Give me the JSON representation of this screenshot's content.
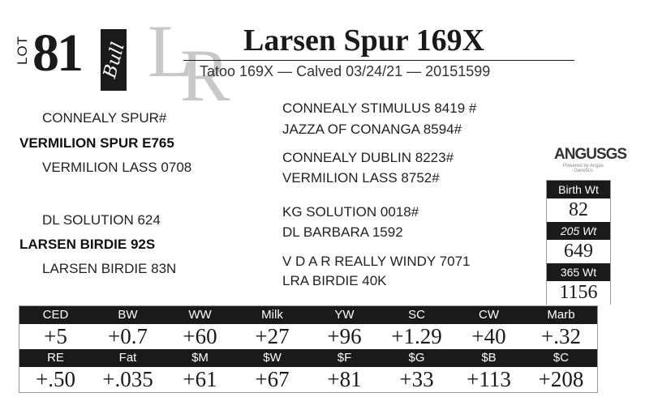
{
  "lot": {
    "label": "LOT",
    "number": "81",
    "type": "Bull"
  },
  "logo": "LR",
  "title": "Larsen Spur 169X",
  "subtitle": "Tatoo 169X  —  Calved 03/24/21  —  20151599",
  "pedigree": {
    "sire": "VERMILION SPUR E765",
    "sire_sire": "CONNEALY SPUR#",
    "sire_dam": "VERMILION LASS 0708",
    "sss": "CONNEALY STIMULUS 8419 #",
    "ssd": "JAZZA OF CONANGA 8594#",
    "sds": "CONNEALY DUBLIN 8223#",
    "sdd": "VERMILION LASS 8752#",
    "dam": "LARSEN BIRDIE 92S",
    "dam_sire": "DL SOLUTION 624",
    "dam_dam": "LARSEN BIRDIE 83N",
    "dss": "KG SOLUTION 0018#",
    "dsd": "DL BARBARA 1592",
    "dds": "V D A R REALLY WINDY 7071",
    "ddd": "LRA BIRDIE 40K"
  },
  "angus_logo": {
    "text": "ANGUSGS",
    "tagline": "Powered by Angus Genetics"
  },
  "weights": [
    {
      "label": "Birth Wt",
      "value": "82"
    },
    {
      "label": "205 Wt",
      "value": "649"
    },
    {
      "label": "365 Wt",
      "value": "1156"
    }
  ],
  "epd_row1": {
    "headers": [
      "CED",
      "BW",
      "WW",
      "Milk",
      "YW",
      "SC",
      "CW",
      "Marb"
    ],
    "values": [
      "+5",
      "+0.7",
      "+60",
      "+27",
      "+96",
      "+1.29",
      "+40",
      "+.32"
    ]
  },
  "epd_row2": {
    "headers": [
      "RE",
      "Fat",
      "$M",
      "$W",
      "$F",
      "$G",
      "$B",
      "$C"
    ],
    "values": [
      "+.50",
      "+.035",
      "+61",
      "+67",
      "+81",
      "+33",
      "+113",
      "+208"
    ]
  }
}
